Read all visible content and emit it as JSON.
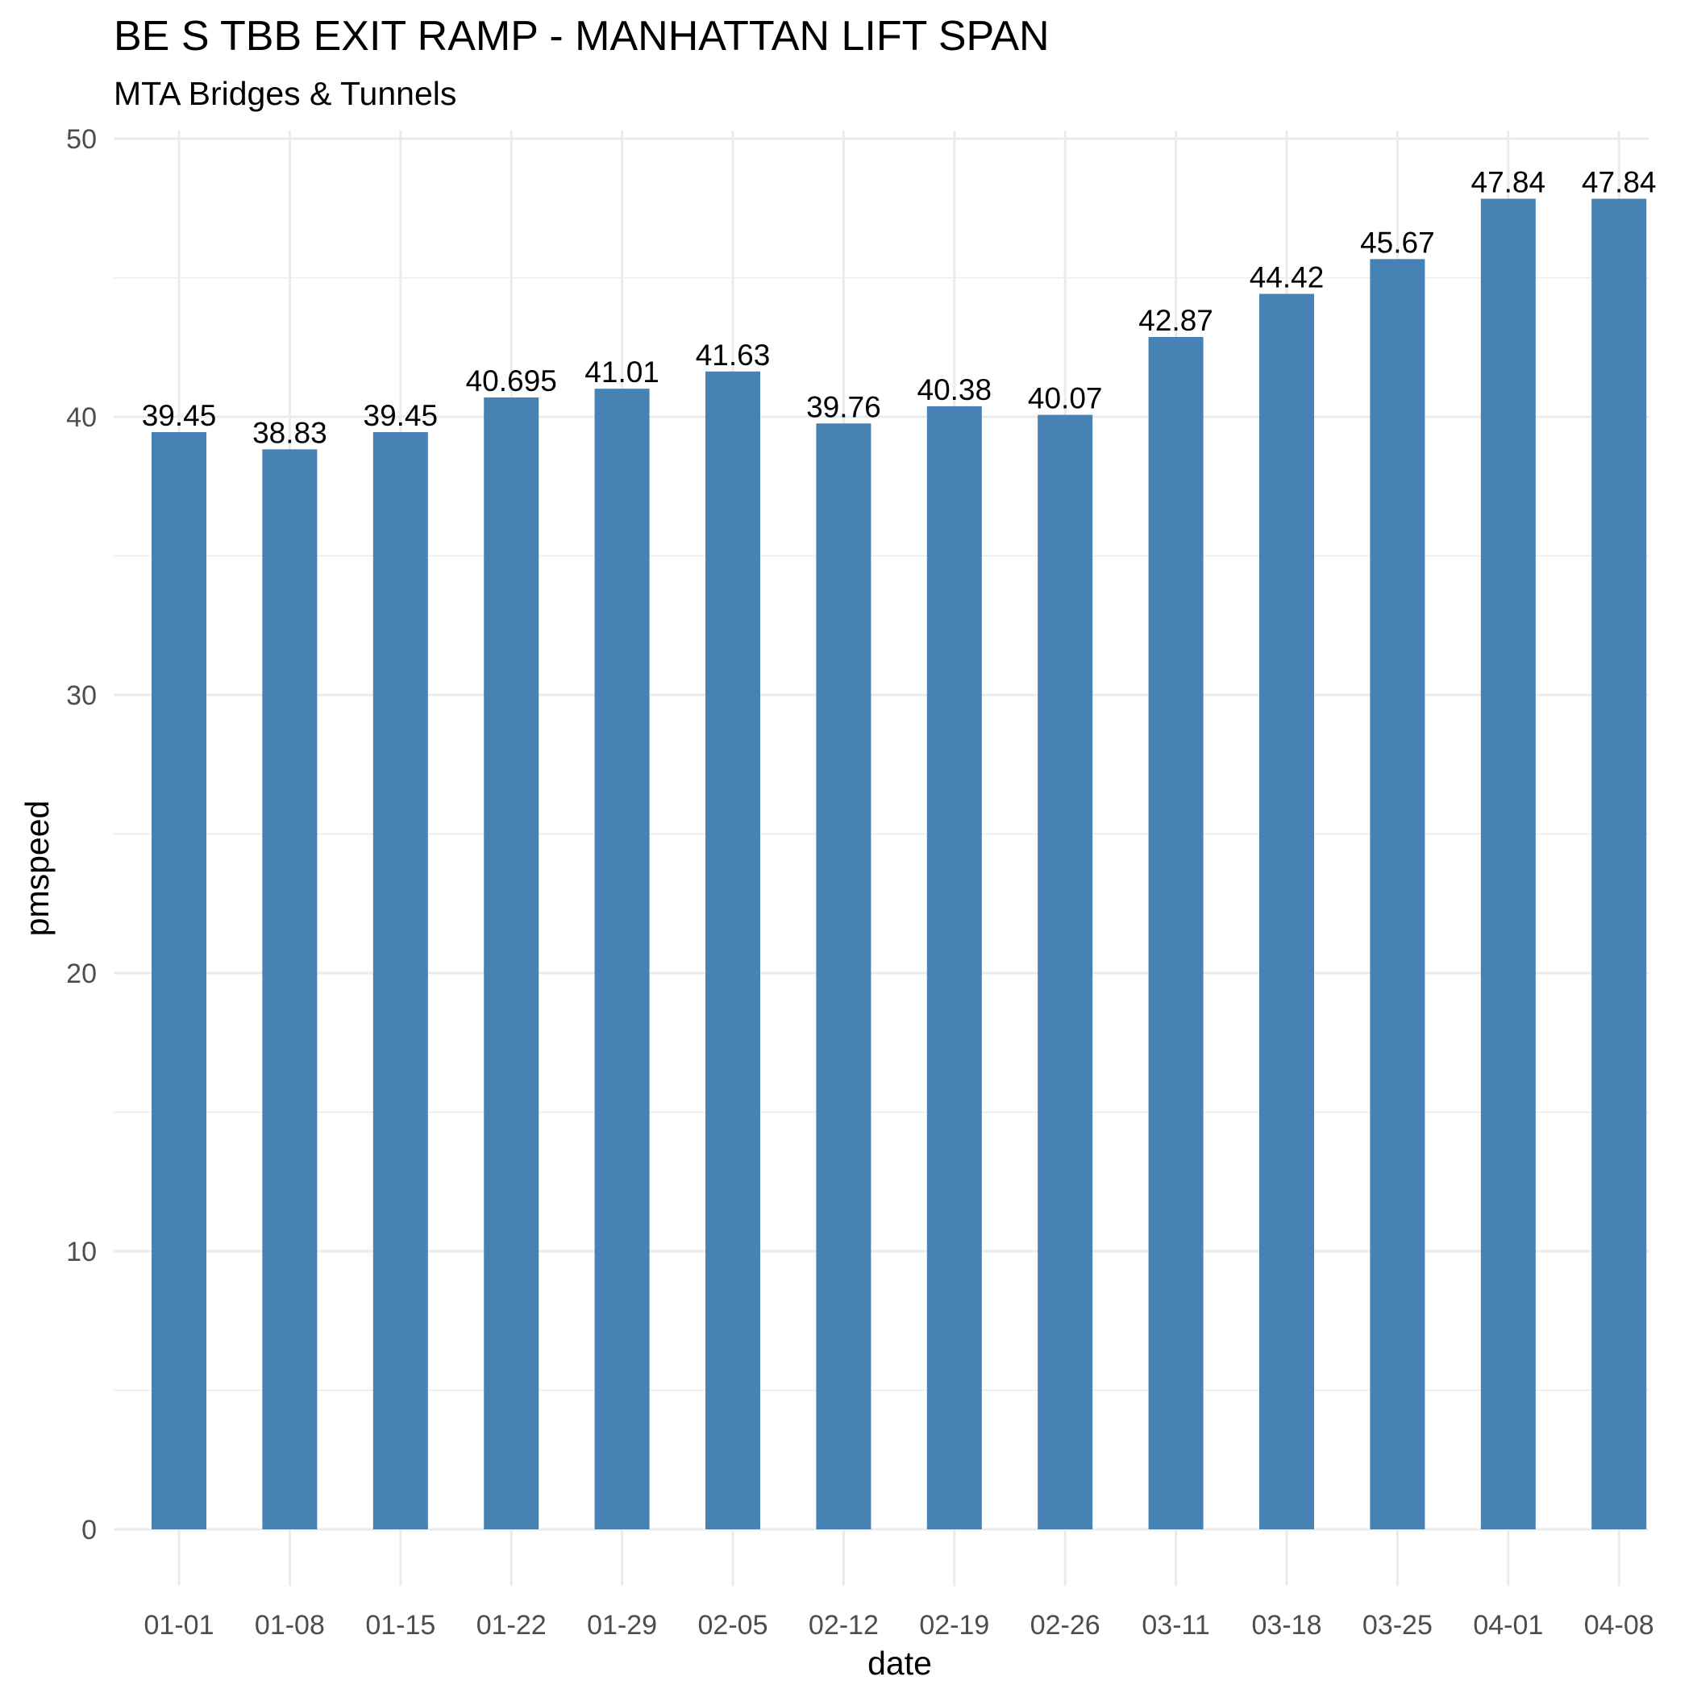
{
  "chart_data": {
    "type": "bar",
    "title": "BE S TBB EXIT RAMP - MANHATTAN LIFT SPAN",
    "subtitle": "MTA Bridges & Tunnels",
    "xlabel": "date",
    "ylabel": "pmspeed",
    "categories": [
      "01-01",
      "01-08",
      "01-15",
      "01-22",
      "01-29",
      "02-05",
      "02-12",
      "02-19",
      "02-26",
      "03-11",
      "03-18",
      "03-25",
      "04-01",
      "04-08"
    ],
    "values": [
      39.45,
      38.83,
      39.45,
      40.695,
      41.01,
      41.63,
      39.76,
      40.38,
      40.07,
      42.87,
      44.42,
      45.67,
      47.84,
      47.84
    ],
    "data_labels": [
      "39.45",
      "38.83",
      "39.45",
      "40.695",
      "41.01",
      "41.63",
      "39.76",
      "40.38",
      "40.07",
      "42.87",
      "44.42",
      "45.67",
      "47.84",
      "47.84"
    ],
    "ylim": [
      0,
      50
    ],
    "yticks": [
      0,
      10,
      20,
      30,
      40,
      50
    ],
    "ytick_labels": [
      "0",
      "10",
      "20",
      "30",
      "40",
      "50"
    ],
    "grid": true,
    "bar_color": "#4682B4",
    "legend": "none"
  }
}
